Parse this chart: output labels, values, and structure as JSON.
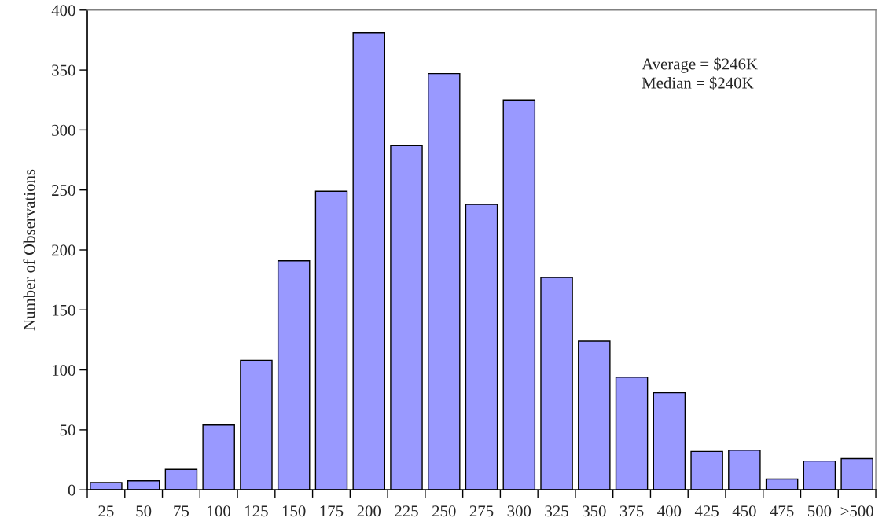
{
  "chart_data": {
    "type": "bar",
    "ylabel": "Number of Observations",
    "categories": [
      "25",
      "50",
      "75",
      "100",
      "125",
      "150",
      "175",
      "200",
      "225",
      "250",
      "275",
      "300",
      "325",
      "350",
      "375",
      "400",
      "425",
      "450",
      "475",
      "500",
      ">500"
    ],
    "values": [
      6,
      7.5,
      17,
      54,
      108,
      191,
      249,
      381,
      287,
      347,
      238,
      325,
      177,
      124,
      94,
      81,
      32,
      33,
      9,
      24,
      26
    ],
    "color": "#9999ff",
    "ylim": [
      0,
      400
    ],
    "yticks": [
      0,
      50,
      100,
      150,
      200,
      250,
      300,
      350,
      400
    ],
    "grid": false,
    "legend": false,
    "annotations": [
      "Average = $246K",
      "Median = $240K"
    ]
  }
}
